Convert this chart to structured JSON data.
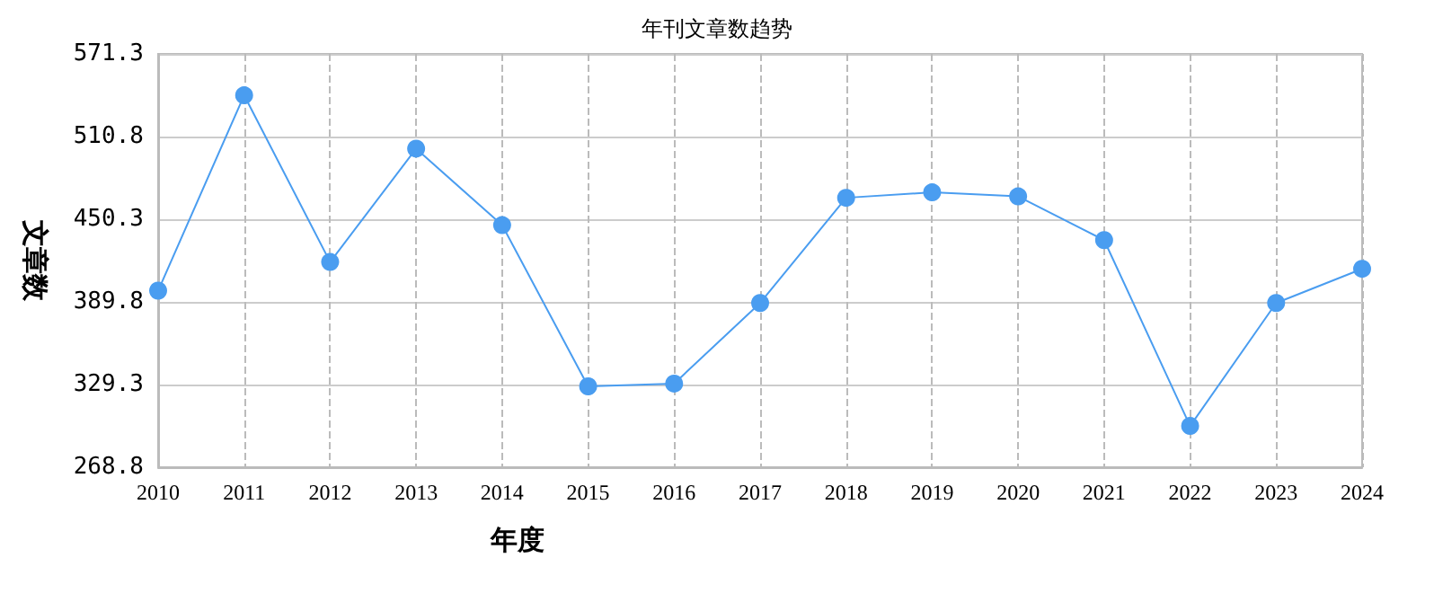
{
  "chart_data": {
    "type": "line",
    "title": "年刊文章数趋势",
    "xlabel": "年度",
    "ylabel": "文章数",
    "categories": [
      "2010",
      "2011",
      "2012",
      "2013",
      "2014",
      "2015",
      "2016",
      "2017",
      "2018",
      "2019",
      "2020",
      "2021",
      "2022",
      "2023",
      "2024"
    ],
    "series": [
      {
        "color": "#4a9df0",
        "values": [
          398,
          541,
          419,
          502,
          446,
          328,
          330,
          389,
          466,
          470,
          467,
          435,
          299,
          389,
          414
        ]
      }
    ],
    "ylim": [
      268.8,
      571.3
    ],
    "yticks": [
      268.8,
      329.3,
      389.8,
      450.3,
      510.8,
      571.3
    ],
    "grid": true,
    "marker": "circle",
    "line_style": "solid"
  }
}
